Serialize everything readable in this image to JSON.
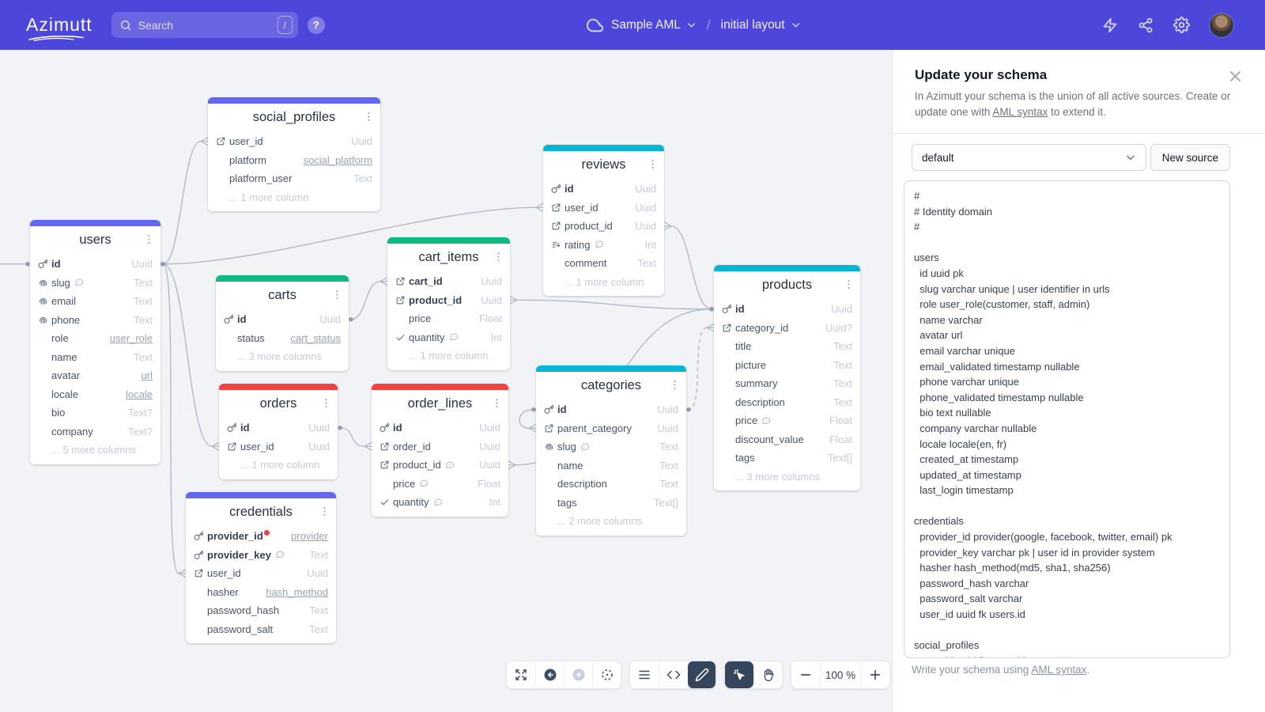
{
  "navbar": {
    "logo": "Azimutt",
    "search_placeholder": "Search",
    "search_shortcut": "/",
    "help": "?",
    "project": "Sample AML",
    "separator": "/",
    "layout": "initial layout",
    "icons": [
      "cloud",
      "bolt",
      "share",
      "settings",
      "avatar"
    ]
  },
  "panel": {
    "title": "Update your schema",
    "description_before": "In Azimutt your schema is the union of all active sources. Create or update one with ",
    "description_link": "AML syntax",
    "description_after": " to extend it.",
    "source_select": "default",
    "new_source_button": "New source",
    "footer_before": "Write your schema using ",
    "footer_link": "AML syntax",
    "footer_after": ".",
    "editor_lines": [
      "#",
      "# Identity domain",
      "#",
      "",
      "users",
      "  id uuid pk",
      "  slug varchar unique | user identifier in urls",
      "  role user_role(customer, staff, admin)",
      "  name varchar",
      "  avatar url",
      "  email varchar unique",
      "  email_validated timestamp nullable",
      "  phone varchar unique",
      "  phone_validated timestamp nullable",
      "  bio text nullable",
      "  company varchar nullable",
      "  locale locale(en, fr)",
      "  created_at timestamp",
      "  updated_at timestamp",
      "  last_login timestamp",
      "",
      "credentials",
      "  provider_id provider(google, facebook, twitter, email) pk",
      "  provider_key varchar pk | user id in provider system",
      "  hasher hash_method(md5, sha1, sha256)",
      "  password_hash varchar",
      "  password_salt varchar",
      "  user_id uuid fk users.id",
      "",
      "social_profiles",
      "  user_id uuid fk users.id"
    ]
  },
  "toolbar": {
    "zoom_level": "100 %"
  },
  "colors": {
    "navbar": "#4C46DB",
    "indigo_header": "#6366F1",
    "green_header": "#10B981",
    "red_header": "#EF4444",
    "cyan_header": "#06B6D4",
    "relation_line": "#ACB6C6"
  },
  "tables": [
    {
      "name": "users",
      "color": "#6366F1",
      "columns": [
        {
          "name": "id",
          "type": "Uuid",
          "icons": [
            "key"
          ],
          "bold": true
        },
        {
          "name": "slug",
          "type": "Text",
          "icons": [
            "fingerprint"
          ],
          "comment": true
        },
        {
          "name": "email",
          "type": "Text",
          "icons": [
            "fingerprint"
          ]
        },
        {
          "name": "phone",
          "type": "Text",
          "icons": [
            "fingerprint"
          ]
        },
        {
          "name": "role",
          "type": "user_role",
          "type_underline": true
        },
        {
          "name": "name",
          "type": "Text"
        },
        {
          "name": "avatar",
          "type": "url",
          "type_underline": true
        },
        {
          "name": "locale",
          "type": "locale",
          "type_underline": true
        },
        {
          "name": "bio",
          "type": "Text?"
        },
        {
          "name": "company",
          "type": "Text?"
        }
      ],
      "more": "... 5 more columns"
    },
    {
      "name": "social_profiles",
      "color": "#6366F1",
      "columns": [
        {
          "name": "user_id",
          "type": "Uuid",
          "icons": [
            "fk"
          ]
        },
        {
          "name": "platform",
          "type": "social_platform",
          "type_underline": true
        },
        {
          "name": "platform_user",
          "type": "Text"
        }
      ],
      "more": "... 1 more column"
    },
    {
      "name": "reviews",
      "color": "#06B6D4",
      "columns": [
        {
          "name": "id",
          "type": "Uuid",
          "icons": [
            "key"
          ],
          "bold": true
        },
        {
          "name": "user_id",
          "type": "Uuid",
          "icons": [
            "fk"
          ]
        },
        {
          "name": "product_id",
          "type": "Uuid",
          "icons": [
            "fk"
          ]
        },
        {
          "name": "rating",
          "type": "Int",
          "icons": [
            "index"
          ],
          "comment": true
        },
        {
          "name": "comment",
          "type": "Text"
        }
      ],
      "more": "... 1 more column"
    },
    {
      "name": "cart_items",
      "color": "#10B981",
      "columns": [
        {
          "name": "cart_id",
          "type": "Uuid",
          "icons": [
            "fk"
          ],
          "bold": true
        },
        {
          "name": "product_id",
          "type": "Uuid",
          "icons": [
            "fk"
          ],
          "bold": true
        },
        {
          "name": "price",
          "type": "Float"
        },
        {
          "name": "quantity",
          "type": "Int",
          "icons": [
            "check"
          ],
          "comment": true
        }
      ],
      "more": "... 1 more column"
    },
    {
      "name": "carts",
      "color": "#10B981",
      "columns": [
        {
          "name": "id",
          "type": "Uuid",
          "icons": [
            "key"
          ],
          "bold": true
        },
        {
          "name": "status",
          "type": "cart_status",
          "type_underline": true
        }
      ],
      "more": "... 3 more columns"
    },
    {
      "name": "orders",
      "color": "#EF4444",
      "columns": [
        {
          "name": "id",
          "type": "Uuid",
          "icons": [
            "key"
          ],
          "bold": true
        },
        {
          "name": "user_id",
          "type": "Uuid",
          "icons": [
            "fk"
          ]
        }
      ],
      "more": "... 1 more column"
    },
    {
      "name": "order_lines",
      "color": "#EF4444",
      "columns": [
        {
          "name": "id",
          "type": "Uuid",
          "icons": [
            "key"
          ],
          "bold": true
        },
        {
          "name": "order_id",
          "type": "Uuid",
          "icons": [
            "fk"
          ]
        },
        {
          "name": "product_id",
          "type": "Uuid",
          "icons": [
            "fk"
          ],
          "comment": true
        },
        {
          "name": "price",
          "type": "Float",
          "comment": true
        },
        {
          "name": "quantity",
          "type": "Int",
          "icons": [
            "check"
          ],
          "comment": true
        }
      ]
    },
    {
      "name": "categories",
      "color": "#06B6D4",
      "columns": [
        {
          "name": "id",
          "type": "Uuid",
          "icons": [
            "key"
          ],
          "bold": true
        },
        {
          "name": "parent_category",
          "type": "Uuid",
          "icons": [
            "fk"
          ]
        },
        {
          "name": "slug",
          "type": "Text",
          "icons": [
            "fingerprint"
          ],
          "comment": true
        },
        {
          "name": "name",
          "type": "Text"
        },
        {
          "name": "description",
          "type": "Text"
        },
        {
          "name": "tags",
          "type": "Text[]"
        }
      ],
      "more": "... 2 more columns"
    },
    {
      "name": "products",
      "color": "#06B6D4",
      "columns": [
        {
          "name": "id",
          "type": "Uuid",
          "icons": [
            "key"
          ],
          "bold": true
        },
        {
          "name": "category_id",
          "type": "Uuid?",
          "icons": [
            "fk"
          ]
        },
        {
          "name": "title",
          "type": "Text"
        },
        {
          "name": "picture",
          "type": "Text"
        },
        {
          "name": "summary",
          "type": "Text"
        },
        {
          "name": "description",
          "type": "Text"
        },
        {
          "name": "price",
          "type": "Float",
          "comment": true
        },
        {
          "name": "discount_value",
          "type": "Float"
        },
        {
          "name": "tags",
          "type": "Text[]"
        }
      ],
      "more": "... 3 more columns"
    },
    {
      "name": "credentials",
      "color": "#6366F1",
      "columns": [
        {
          "name": "provider_id",
          "type": "provider",
          "icons": [
            "key"
          ],
          "bold": true,
          "badge": true,
          "type_underline": true
        },
        {
          "name": "provider_key",
          "type": "Text",
          "icons": [
            "key"
          ],
          "bold": true,
          "comment": true
        },
        {
          "name": "user_id",
          "type": "Uuid",
          "icons": [
            "fk"
          ]
        },
        {
          "name": "hasher",
          "type": "hash_method",
          "type_underline": true
        },
        {
          "name": "password_hash",
          "type": "Text"
        },
        {
          "name": "password_salt",
          "type": "Text"
        }
      ]
    }
  ],
  "relations": [
    {
      "from": "social_profiles.user_id",
      "to": "users.id"
    },
    {
      "from": "reviews.user_id",
      "to": "users.id"
    },
    {
      "from": "orders.user_id",
      "to": "users.id"
    },
    {
      "from": "credentials.user_id",
      "to": "users.id"
    },
    {
      "from": "cart_items.cart_id",
      "to": "carts.id"
    },
    {
      "from": "order_lines.order_id",
      "to": "orders.id"
    },
    {
      "from": "cart_items.product_id",
      "to": "products.id"
    },
    {
      "from": "order_lines.product_id",
      "to": "products.id"
    },
    {
      "from": "reviews.product_id",
      "to": "products.id"
    },
    {
      "from": "categories.parent_category",
      "to": "categories.id",
      "self": true
    },
    {
      "from": "products.category_id",
      "to": "categories.id",
      "dashed": true
    }
  ]
}
